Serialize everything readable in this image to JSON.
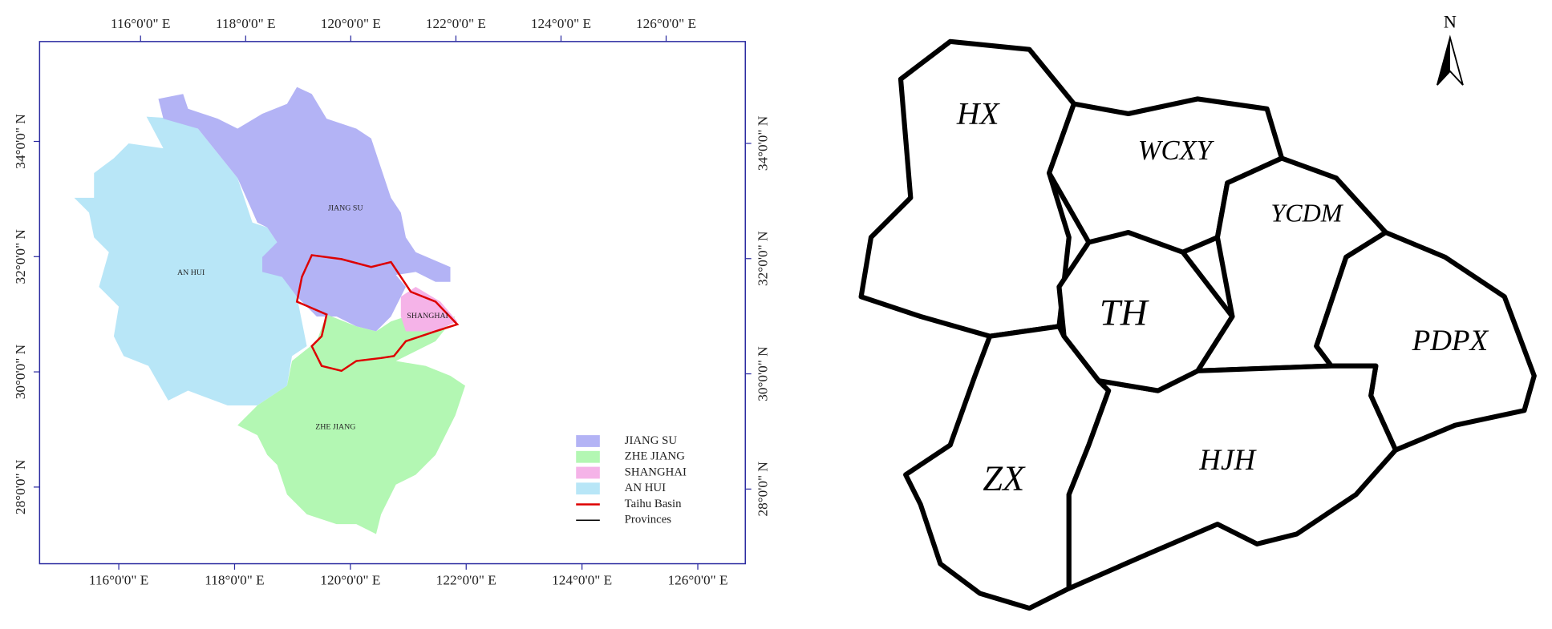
{
  "study_area_map": {
    "top_axis": [
      "116°0'0\" E",
      "118°0'0\" E",
      "120°0'0\" E",
      "122°0'0\" E",
      "124°0'0\" E",
      "126°0'0\" E"
    ],
    "bottom_axis": [
      "116°0'0\" E",
      "118°0'0\" E",
      "120°0'0\" E",
      "122°0'0\" E",
      "124°0'0\" E",
      "126°0'0\" E"
    ],
    "left_axis": [
      "34°0'0\" N",
      "32°0'0\" N",
      "30°0'0\" N",
      "28°0'0\" N"
    ],
    "right_axis": [
      "34°0'0\" N",
      "32°0'0\" N",
      "30°0'0\" N",
      "28°0'0\" N"
    ],
    "regions": [
      "JIANG SU",
      "AN HUI",
      "SHANGHAI",
      "ZHE JIANG"
    ],
    "legend": [
      "JIANG SU",
      "ZHE JIANG",
      "SHANGHAI",
      "AN HUI",
      "Taihu Basin",
      "Provinces"
    ]
  },
  "zone_map": {
    "north": "N",
    "zones": [
      "HX",
      "WCXY",
      "YCDM",
      "TH",
      "PDPX",
      "ZX",
      "HJH"
    ]
  }
}
